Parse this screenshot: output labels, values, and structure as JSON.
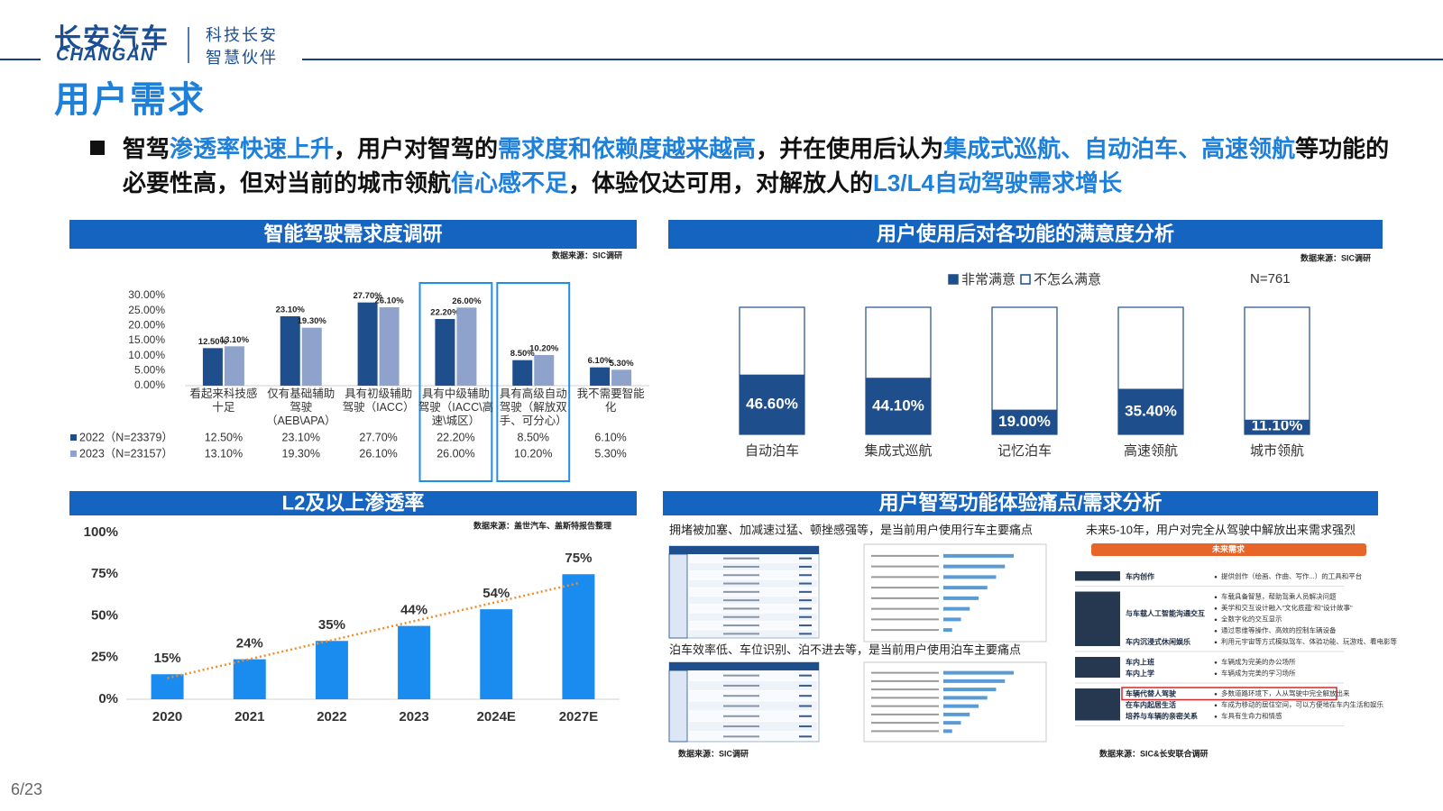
{
  "header": {
    "brand": "长安汽车",
    "brand_en": "CHANGAN",
    "slogan": [
      "科技长安",
      "智慧伙伴"
    ]
  },
  "title": "用户需求",
  "bullet": [
    {
      "text": "智驾"
    },
    {
      "text": "渗透率快速上升",
      "highlight": true
    },
    {
      "text": "，用户对智驾的"
    },
    {
      "text": "需求度和依赖度越来越高",
      "highlight": true
    },
    {
      "text": "，并在使用后认为"
    },
    {
      "text": "集成式巡航、自动泊车、高速领航",
      "highlight": true
    },
    {
      "text": "等功能的必要性高，但对当前的城市领航"
    },
    {
      "text": "信心感不足",
      "highlight": true
    },
    {
      "text": "，体验仅达可用，对解放人的"
    },
    {
      "text": "L3/L4自动驾驶需求增长",
      "highlight": true
    }
  ],
  "chart_data": [
    {
      "type": "bar",
      "title": "智能驾驶需求度调研",
      "source": "数据来源：SIC调研",
      "categories": [
        "看起来科技感十足",
        "仅有基础辅助驾驶（AEB\\APA）",
        "具有初级辅助驾驶（IACC）",
        "具有中级辅助驾驶（IACC\\高速\\城区）",
        "具有高级自动驾驶（解放双手、可分心）",
        "我不需要智能化"
      ],
      "series": [
        {
          "name": "2022（N=23379）",
          "color": "#1f4e8c",
          "values": [
            12.5,
            23.1,
            27.7,
            22.2,
            8.5,
            6.1
          ],
          "value_labels": [
            "12.50%",
            "23.10%",
            "27.70%",
            "22.20%",
            "8.50%",
            "6.10%"
          ]
        },
        {
          "name": "2023（N=23157）",
          "color": "#8fa2cc",
          "values": [
            13.1,
            19.3,
            26.1,
            26.0,
            10.2,
            5.3
          ],
          "value_labels": [
            "13.10%",
            "19.30%",
            "26.10%",
            "26.00%",
            "10.20%",
            "5.30%"
          ]
        }
      ],
      "ylim": [
        0,
        30
      ],
      "yticks": [
        {
          "value": 0,
          "label": "0.00%"
        },
        {
          "value": 5,
          "label": "5.00%"
        },
        {
          "value": 10,
          "label": "10.00%"
        },
        {
          "value": 15,
          "label": "15.00%"
        },
        {
          "value": 20,
          "label": "20.00%"
        },
        {
          "value": 25,
          "label": "25.00%"
        },
        {
          "value": 30,
          "label": "30.00%"
        }
      ],
      "data_table": true,
      "highlight_categories": [
        3,
        4
      ]
    },
    {
      "type": "stacked_bar",
      "title": "用户使用后对各功能的满意度分析",
      "source": "数据来源：SIC调研",
      "annotation": "N=761",
      "categories": [
        "自动泊车",
        "集成式巡航",
        "记忆泊车",
        "高速领航",
        "城市领航"
      ],
      "series": [
        {
          "name": "非常满意",
          "color": "#1f4e8c",
          "values": [
            46.6,
            44.1,
            19.0,
            35.4,
            11.1
          ],
          "value_labels": [
            "46.60%",
            "44.10%",
            "19.00%",
            "35.40%",
            "11.10%"
          ]
        },
        {
          "name": "不怎么满意",
          "color": "#ffffff",
          "values": [
            53.4,
            55.9,
            81.0,
            64.6,
            88.9
          ]
        }
      ],
      "legend": "top"
    },
    {
      "type": "bar",
      "title": "L2及以上渗透率",
      "source": "数据来源：盖世汽车、盖斯特报告整理",
      "categories": [
        "2020",
        "2021",
        "2022",
        "2023",
        "2024E",
        "2027E"
      ],
      "values": [
        15,
        24,
        35,
        44,
        54,
        75
      ],
      "value_labels": [
        "15%",
        "24%",
        "35%",
        "44%",
        "54%",
        "75%"
      ],
      "color": "#1a8cf0",
      "ylim": [
        0,
        100
      ],
      "yticks": [
        {
          "value": 0,
          "label": "0%"
        },
        {
          "value": 25,
          "label": "25%"
        },
        {
          "value": 50,
          "label": "50%"
        },
        {
          "value": 75,
          "label": "75%"
        },
        {
          "value": 100,
          "label": "100%"
        }
      ],
      "trendline": true,
      "trendline_color": "#f08c28"
    }
  ],
  "pain_points": {
    "title": "用户智驾功能体验痛点/需求分析",
    "driving_note": "拥堵被加塞、加减速过猛、顿挫感强等，是当前用户使用行车主要痛点",
    "parking_note": "泊车效率低、车位识别、泊不进去等，是当前用户使用泊车主要痛点",
    "future_note": "未来5-10年，用户对完全从驾驶中解放出来需求强烈",
    "future_header": "未来需求",
    "future_blocks": [
      [
        {
          "label": "车内创作",
          "descs": [
            "提供创作（绘画、作曲、写作...）的工具和平台"
          ]
        }
      ],
      [
        {
          "label": "与车载人工智能沟通交互",
          "descs": [
            "车载具备智慧，帮助驾乘人员解决问题",
            "美学和交互设计融入\"文化底蕴\"和\"设计故事\"",
            "全数字化的交互显示",
            "通过思维等操作、高效的控制车辆设备"
          ]
        },
        {
          "label": "车内沉浸式休闲娱乐",
          "descs": [
            "利用元宇宙等方式模拟驾车、体验功能、玩游戏、看电影等"
          ]
        }
      ],
      [
        {
          "label": "车内上班",
          "descs": [
            "车辆成为完美的办公场所"
          ]
        },
        {
          "label": "车内上学",
          "descs": [
            "车辆成为完美的学习场所"
          ]
        }
      ],
      [
        {
          "label": "车辆代替人驾驶",
          "descs": [
            "多数道路环境下，人从驾驶中完全解放出来"
          ],
          "highlight": true
        },
        {
          "label": "在车内起居生活",
          "descs": [
            "车成为移动的居住空间，可以方便地在车内生活和娱乐"
          ]
        },
        {
          "label": "培养与车辆的亲密关系",
          "descs": [
            "车具有生命力和情感"
          ]
        }
      ]
    ],
    "source_left": "数据来源：SIC调研",
    "source_right": "数据来源：SIC&长安联合调研"
  },
  "page": "6/23"
}
